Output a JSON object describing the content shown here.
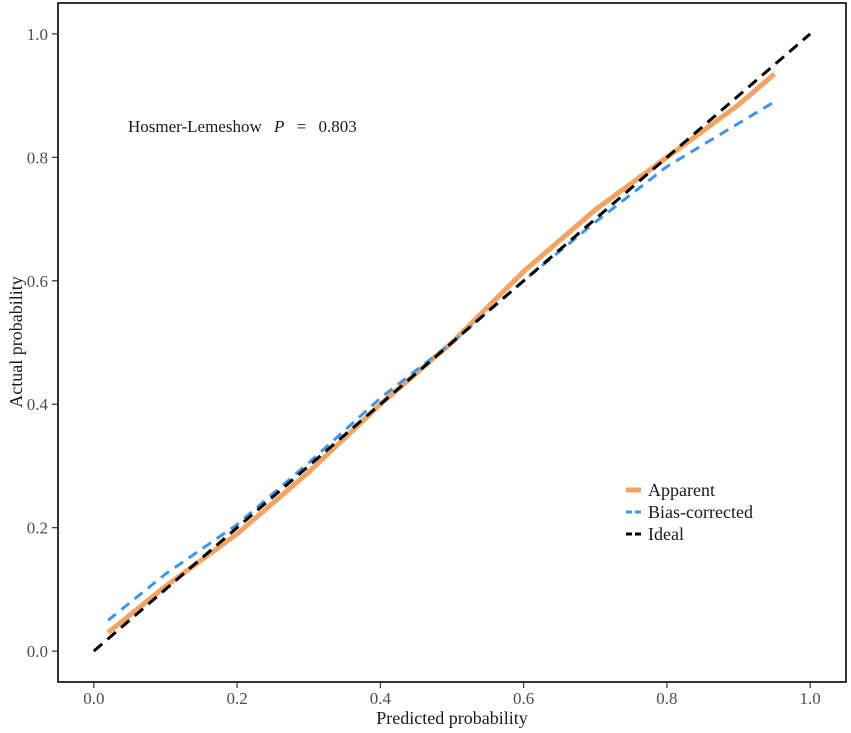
{
  "chart_data": {
    "type": "line",
    "title": "",
    "xlabel": "Predicted probability",
    "ylabel": "Actual probability",
    "xlim": [
      -0.05,
      1.05
    ],
    "ylim": [
      -0.05,
      1.05
    ],
    "x_ticks": [
      0.0,
      0.2,
      0.4,
      0.6,
      0.8,
      1.0
    ],
    "x_tick_labels": [
      "0.0",
      "0.2",
      "0.4",
      "0.6",
      "0.8",
      "1.0"
    ],
    "y_ticks": [
      0.0,
      0.2,
      0.4,
      0.6,
      0.8,
      1.0
    ],
    "y_tick_labels": [
      "0.0",
      "0.2",
      "0.4",
      "0.6",
      "0.8",
      "1.0"
    ],
    "grid": false,
    "legend_position": "bottom-right",
    "annotation": {
      "prefix": "Hosmer-Lemeshow",
      "stat": "P",
      "equals": "=",
      "value": "0.803"
    },
    "series": [
      {
        "name": "Apparent",
        "color": "#F4A460",
        "style": "solid",
        "x": [
          0.02,
          0.1,
          0.2,
          0.3,
          0.4,
          0.5,
          0.6,
          0.7,
          0.8,
          0.9,
          0.95
        ],
        "y": [
          0.03,
          0.105,
          0.19,
          0.29,
          0.4,
          0.5,
          0.615,
          0.715,
          0.8,
          0.885,
          0.935
        ]
      },
      {
        "name": "Bias-corrected",
        "color": "#3A96F0",
        "style": "dashed",
        "x": [
          0.02,
          0.1,
          0.2,
          0.3,
          0.4,
          0.5,
          0.6,
          0.7,
          0.8,
          0.9,
          0.95
        ],
        "y": [
          0.05,
          0.125,
          0.205,
          0.305,
          0.41,
          0.5,
          0.6,
          0.695,
          0.785,
          0.855,
          0.89
        ]
      },
      {
        "name": "Ideal",
        "color": "#000000",
        "style": "dashed",
        "x": [
          0.0,
          1.0
        ],
        "y": [
          0.0,
          1.0
        ]
      }
    ]
  }
}
